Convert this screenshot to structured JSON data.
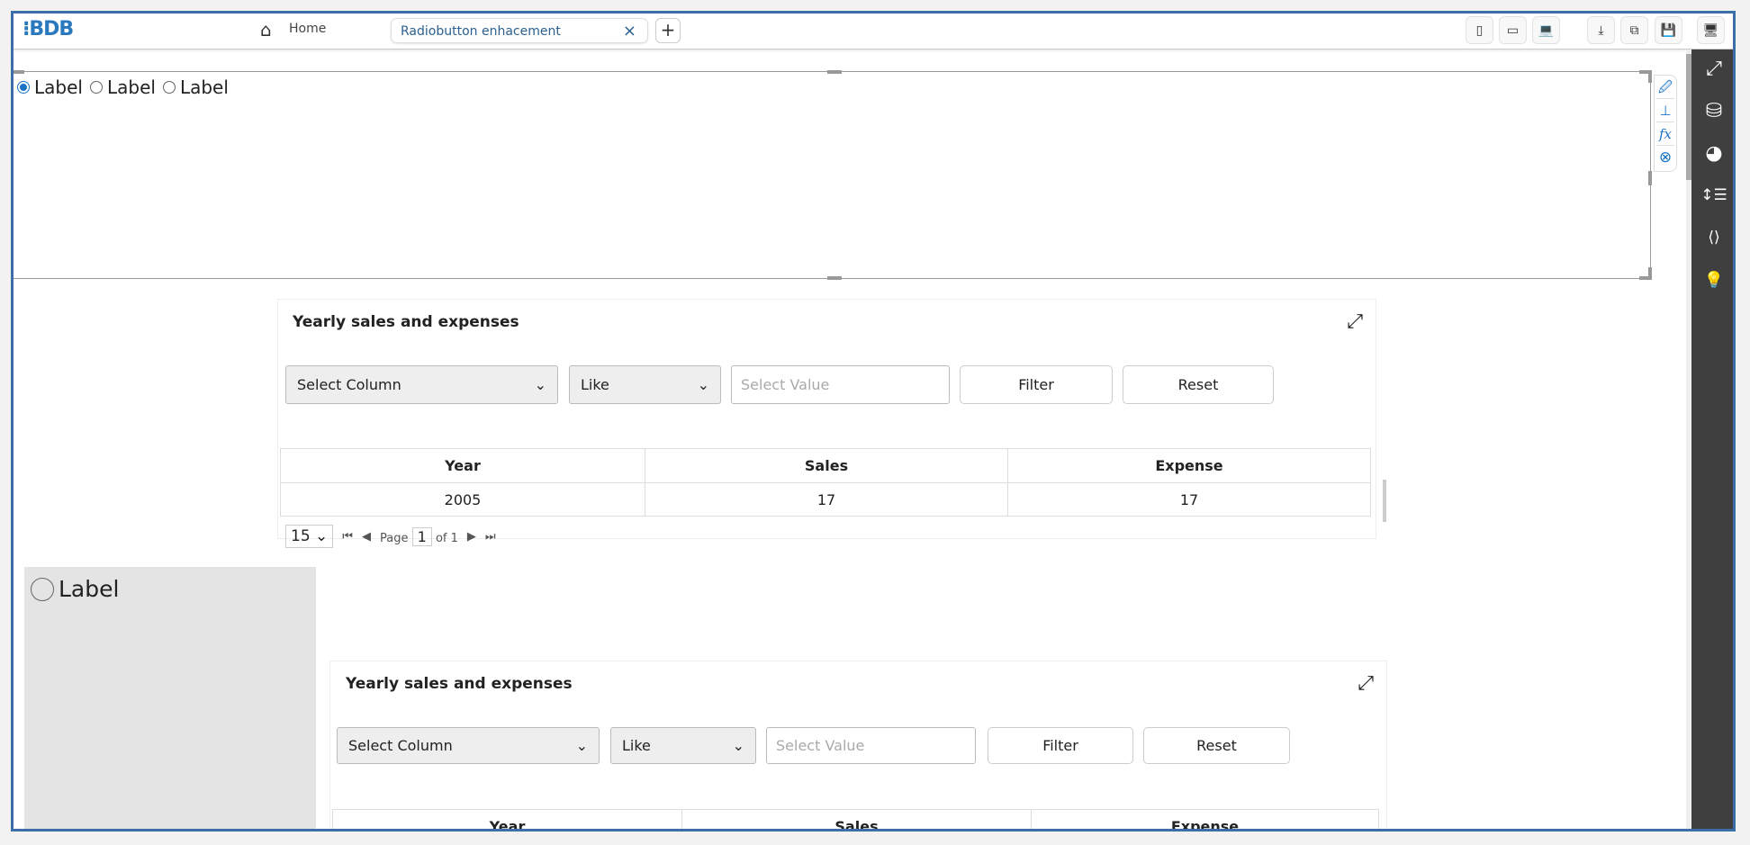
{
  "topbar": {
    "logo": "BDB",
    "home_label": "Home",
    "tab_label": "Radiobutton enhacement",
    "tab_close": "×",
    "add_tab": "+",
    "buttons": [
      {
        "icon": "mobile-icon",
        "glyph": "▯"
      },
      {
        "icon": "tablet-icon",
        "glyph": "▭"
      },
      {
        "icon": "laptop-icon",
        "glyph": "💻"
      },
      {
        "icon": "download-icon",
        "glyph": "⤓"
      },
      {
        "icon": "copy-icon",
        "glyph": "⧉"
      },
      {
        "icon": "save-icon",
        "glyph": "💾"
      },
      {
        "icon": "desktop-icon",
        "glyph": "🖥"
      }
    ]
  },
  "sidebar": [
    {
      "icon": "expand-icon",
      "glyph": "⤢"
    },
    {
      "icon": "database-icon",
      "glyph": "⛁"
    },
    {
      "icon": "pie-chart-icon",
      "glyph": "◕"
    },
    {
      "icon": "line-height-icon",
      "glyph": "↕☰"
    },
    {
      "icon": "code-icon",
      "glyph": "⟨⟩"
    },
    {
      "icon": "lightbulb-icon",
      "glyph": "💡"
    }
  ],
  "radio_group": {
    "options": [
      "Label",
      "Label",
      "Label"
    ],
    "selected": 0
  },
  "component_tools": [
    {
      "icon": "edit-screen-icon",
      "glyph": "🖉"
    },
    {
      "icon": "axis-icon",
      "glyph": "⊥"
    },
    {
      "icon": "function-icon",
      "glyph": "fx"
    },
    {
      "icon": "remove-icon",
      "glyph": "⊗"
    }
  ],
  "single_radio": {
    "label": "Label"
  },
  "widget1": {
    "title": "Yearly sales and expenses",
    "select_column": "Select Column",
    "operator": "Like",
    "value_placeholder": "Select Value",
    "filter": "Filter",
    "reset": "Reset",
    "columns": [
      "Year",
      "Sales",
      "Expense"
    ],
    "rows": [
      [
        "2005",
        "17",
        "17"
      ]
    ],
    "pager": {
      "page_size": "15",
      "page_label": "Page",
      "page": "1",
      "of_label": "of 1"
    }
  },
  "widget2": {
    "title": "Yearly sales and expenses",
    "select_column": "Select Column",
    "operator": "Like",
    "value_placeholder": "Select Value",
    "filter": "Filter",
    "reset": "Reset",
    "columns": [
      "Year",
      "Sales",
      "Expense"
    ]
  }
}
